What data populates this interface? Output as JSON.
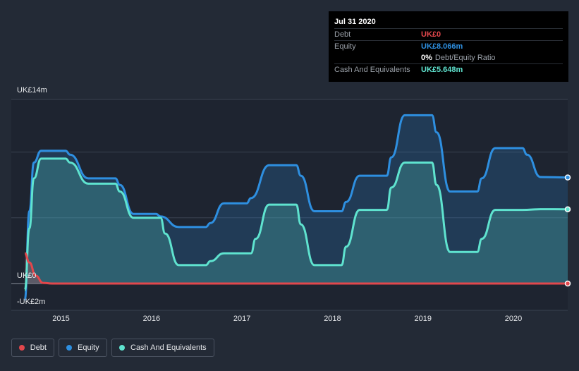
{
  "tooltip": {
    "date": "Jul 31 2020",
    "rows": [
      {
        "label": "Debt",
        "value": "UK£0",
        "color": "#e2474c"
      },
      {
        "label": "Equity",
        "value": "UK£8.066m",
        "color": "#2e8fe0"
      },
      {
        "ratio_value": "0%",
        "ratio_label": "Debt/Equity Ratio"
      },
      {
        "label": "Cash And Equivalents",
        "value": "UK£5.648m",
        "color": "#5fe3cf"
      }
    ]
  },
  "chart_data": {
    "type": "area",
    "y_axis_labels": [
      "UK£14m",
      "UK£0",
      "-UK£2m"
    ],
    "x_tick_labels": [
      "2015",
      "2016",
      "2017",
      "2018",
      "2019",
      "2020"
    ],
    "ylim": [
      -2,
      14
    ],
    "xlim": [
      2014.45,
      2020.6
    ],
    "grid": true,
    "legend_position": "bottom-left",
    "series": [
      {
        "name": "Debt",
        "color": "#e2474c",
        "points": [
          [
            2014.6,
            2.3
          ],
          [
            2014.65,
            1.6
          ],
          [
            2014.72,
            0.6
          ],
          [
            2014.8,
            0.05
          ],
          [
            2014.9,
            0
          ],
          [
            2016.0,
            0
          ],
          [
            2018.0,
            0
          ],
          [
            2020.6,
            0
          ]
        ]
      },
      {
        "name": "Equity",
        "color": "#2e8fe0",
        "points": [
          [
            2014.6,
            -1.2
          ],
          [
            2014.65,
            5.5
          ],
          [
            2014.7,
            9.2
          ],
          [
            2014.78,
            10.1
          ],
          [
            2015.05,
            10.1
          ],
          [
            2015.1,
            9.8
          ],
          [
            2015.3,
            8.0
          ],
          [
            2015.6,
            8.0
          ],
          [
            2015.65,
            7.5
          ],
          [
            2015.8,
            5.3
          ],
          [
            2016.05,
            5.3
          ],
          [
            2016.1,
            5.1
          ],
          [
            2016.3,
            4.3
          ],
          [
            2016.6,
            4.3
          ],
          [
            2016.65,
            4.6
          ],
          [
            2016.8,
            6.1
          ],
          [
            2017.05,
            6.1
          ],
          [
            2017.1,
            6.5
          ],
          [
            2017.3,
            9.0
          ],
          [
            2017.6,
            9.0
          ],
          [
            2017.65,
            8.2
          ],
          [
            2017.8,
            5.5
          ],
          [
            2018.1,
            5.5
          ],
          [
            2018.15,
            6.2
          ],
          [
            2018.3,
            8.2
          ],
          [
            2018.6,
            8.2
          ],
          [
            2018.65,
            9.6
          ],
          [
            2018.8,
            12.8
          ],
          [
            2019.1,
            12.8
          ],
          [
            2019.15,
            11.5
          ],
          [
            2019.3,
            7.0
          ],
          [
            2019.6,
            7.0
          ],
          [
            2019.65,
            8.0
          ],
          [
            2019.8,
            10.3
          ],
          [
            2020.1,
            10.3
          ],
          [
            2020.15,
            9.8
          ],
          [
            2020.3,
            8.1
          ],
          [
            2020.6,
            8.066
          ]
        ]
      },
      {
        "name": "Cash And Equivalents",
        "color": "#5fe3cf",
        "points": [
          [
            2014.6,
            -0.5
          ],
          [
            2014.65,
            4.2
          ],
          [
            2014.7,
            8.0
          ],
          [
            2014.78,
            9.5
          ],
          [
            2015.05,
            9.5
          ],
          [
            2015.1,
            9.2
          ],
          [
            2015.3,
            7.6
          ],
          [
            2015.6,
            7.6
          ],
          [
            2015.65,
            7.0
          ],
          [
            2015.8,
            5.0
          ],
          [
            2016.1,
            5.0
          ],
          [
            2016.15,
            3.8
          ],
          [
            2016.3,
            1.4
          ],
          [
            2016.6,
            1.4
          ],
          [
            2016.65,
            1.7
          ],
          [
            2016.8,
            2.3
          ],
          [
            2017.1,
            2.3
          ],
          [
            2017.15,
            3.4
          ],
          [
            2017.3,
            6.0
          ],
          [
            2017.6,
            6.0
          ],
          [
            2017.65,
            4.5
          ],
          [
            2017.8,
            1.4
          ],
          [
            2018.1,
            1.4
          ],
          [
            2018.15,
            2.8
          ],
          [
            2018.3,
            5.6
          ],
          [
            2018.6,
            5.6
          ],
          [
            2018.65,
            7.3
          ],
          [
            2018.8,
            9.2
          ],
          [
            2019.1,
            9.2
          ],
          [
            2019.15,
            7.5
          ],
          [
            2019.3,
            2.4
          ],
          [
            2019.6,
            2.4
          ],
          [
            2019.65,
            3.4
          ],
          [
            2019.8,
            5.6
          ],
          [
            2020.1,
            5.6
          ],
          [
            2020.3,
            5.65
          ],
          [
            2020.6,
            5.648
          ]
        ]
      }
    ]
  }
}
